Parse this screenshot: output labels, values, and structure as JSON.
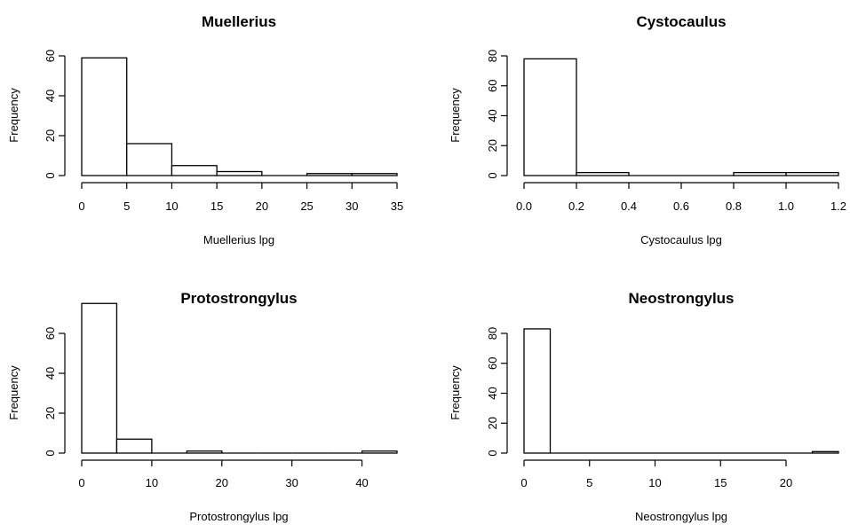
{
  "chart_data": [
    {
      "type": "bar",
      "title": "Muellerius",
      "xlabel": "Muellerius lpg",
      "ylabel": "Frequency",
      "xlim": [
        0,
        35
      ],
      "ylim": [
        0,
        60
      ],
      "xticks": [
        "0",
        "5",
        "10",
        "15",
        "20",
        "25",
        "30",
        "35"
      ],
      "yticks": [
        "0",
        "20",
        "40",
        "60"
      ],
      "bins": [
        [
          0,
          5
        ],
        [
          5,
          10
        ],
        [
          10,
          15
        ],
        [
          15,
          20
        ],
        [
          20,
          25
        ],
        [
          25,
          30
        ],
        [
          30,
          35
        ]
      ],
      "values": [
        59,
        16,
        5,
        2,
        0,
        1,
        1
      ]
    },
    {
      "type": "bar",
      "title": "Cystocaulus",
      "xlabel": "Cystocaulus lpg",
      "ylabel": "Frequency",
      "xlim": [
        0,
        1.2
      ],
      "ylim": [
        0,
        80
      ],
      "xticks": [
        "0.0",
        "0.2",
        "0.4",
        "0.6",
        "0.8",
        "1.0",
        "1.2"
      ],
      "yticks": [
        "0",
        "20",
        "40",
        "60",
        "80"
      ],
      "bins": [
        [
          0,
          0.2
        ],
        [
          0.2,
          0.4
        ],
        [
          0.4,
          0.6
        ],
        [
          0.6,
          0.8
        ],
        [
          0.8,
          1.0
        ],
        [
          1.0,
          1.2
        ]
      ],
      "values": [
        78,
        2,
        0,
        0,
        2,
        2
      ]
    },
    {
      "type": "bar",
      "title": "Protostrongylus",
      "xlabel": "Protostrongylus lpg",
      "ylabel": "Frequency",
      "xlim": [
        0,
        45
      ],
      "ylim": [
        0,
        60
      ],
      "xticks": [
        "0",
        "10",
        "20",
        "30",
        "40"
      ],
      "yticks": [
        "0",
        "20",
        "40",
        "60"
      ],
      "bins": [
        [
          0,
          5
        ],
        [
          5,
          10
        ],
        [
          10,
          15
        ],
        [
          15,
          20
        ],
        [
          20,
          25
        ],
        [
          25,
          30
        ],
        [
          30,
          35
        ],
        [
          35,
          40
        ],
        [
          40,
          45
        ]
      ],
      "values": [
        75,
        7,
        0,
        1,
        0,
        0,
        0,
        0,
        1
      ]
    },
    {
      "type": "bar",
      "title": "Neostrongylus",
      "xlabel": "Neostrongylus lpg",
      "ylabel": "Frequency",
      "xlim": [
        0,
        24
      ],
      "ylim": [
        0,
        80
      ],
      "xticks": [
        "0",
        "5",
        "10",
        "15",
        "20"
      ],
      "yticks": [
        "0",
        "20",
        "40",
        "60",
        "80"
      ],
      "bins": [
        [
          0,
          2
        ],
        [
          2,
          4
        ],
        [
          4,
          6
        ],
        [
          6,
          8
        ],
        [
          8,
          10
        ],
        [
          10,
          12
        ],
        [
          12,
          14
        ],
        [
          14,
          16
        ],
        [
          16,
          18
        ],
        [
          18,
          20
        ],
        [
          20,
          22
        ],
        [
          22,
          24
        ]
      ],
      "values": [
        83,
        0,
        0,
        0,
        0,
        0,
        0,
        0,
        0,
        0,
        0,
        1
      ]
    }
  ]
}
